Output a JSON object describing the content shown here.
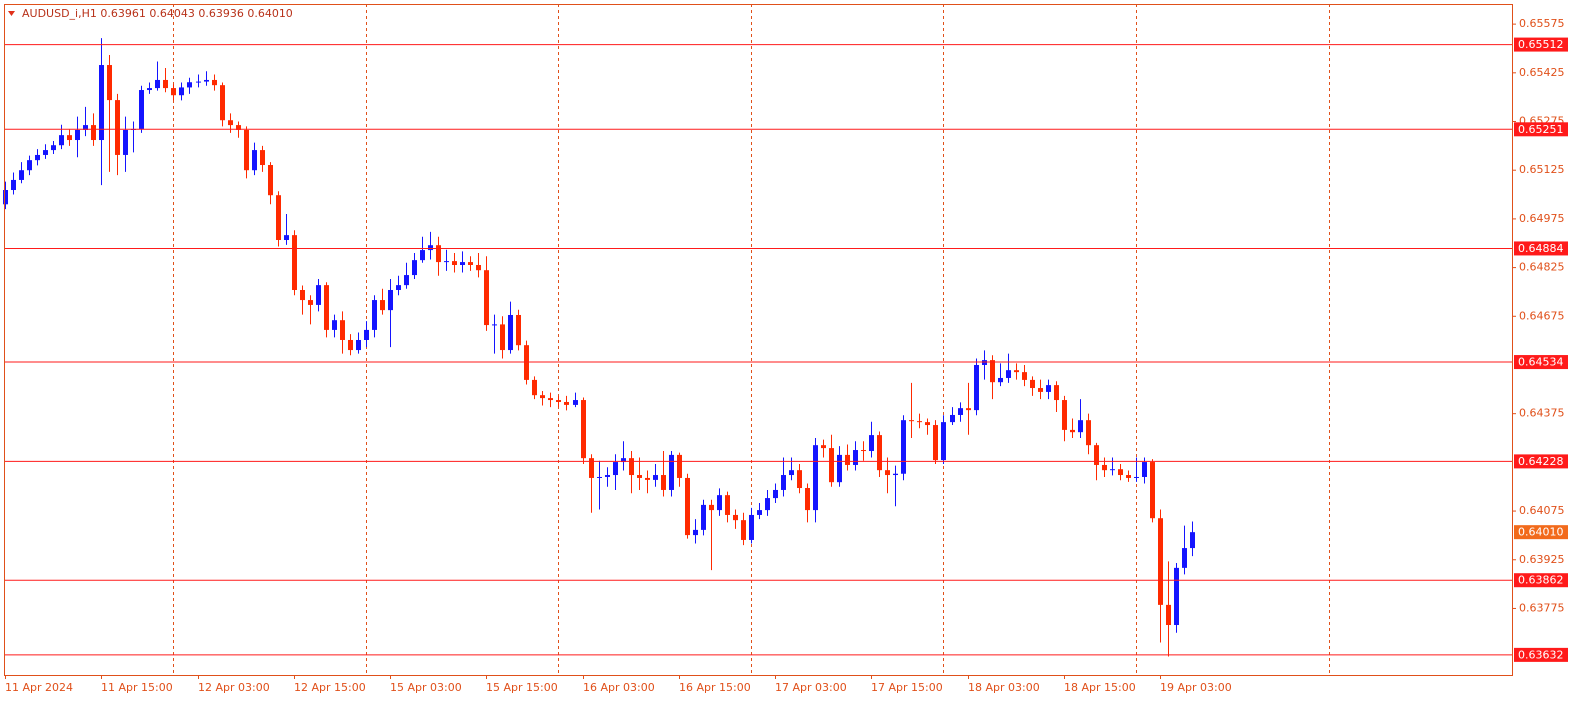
{
  "chart_data": {
    "type": "candlestick",
    "header": "AUDUSD_i,H1  0.63961 0.64043 0.63936 0.64010",
    "last_price_label": "0.64010",
    "up_color": "#1414ff",
    "down_color": "#ff2a00",
    "level_color": "#ff1a1a",
    "axis_color": "#e0501a",
    "grid": true,
    "ylim": [
      0.6357,
      0.65637
    ],
    "yticks": [
      0.65575,
      0.65425,
      0.65275,
      0.65125,
      0.64975,
      0.64825,
      0.64675,
      0.64375,
      0.64075,
      0.63925,
      0.63775
    ],
    "levels": [
      0.65512,
      0.65251,
      0.64884,
      0.64534,
      0.64228,
      0.63862,
      0.63632
    ],
    "categories": [
      "11 Apr 2024",
      null,
      null,
      null,
      null,
      null,
      null,
      null,
      null,
      null,
      null,
      null,
      "11 Apr 15:00",
      null,
      null,
      null,
      null,
      null,
      null,
      null,
      null,
      null,
      null,
      null,
      "12 Apr 03:00",
      null,
      null,
      null,
      null,
      null,
      null,
      null,
      null,
      null,
      null,
      null,
      "12 Apr 15:00",
      null,
      null,
      null,
      null,
      null,
      null,
      null,
      null,
      null,
      null,
      null,
      "15 Apr 03:00",
      null,
      null,
      null,
      null,
      null,
      null,
      null,
      null,
      null,
      null,
      null,
      "15 Apr 15:00",
      null,
      null,
      null,
      null,
      null,
      null,
      null,
      null,
      null,
      null,
      null,
      "16 Apr 03:00",
      null,
      null,
      null,
      null,
      null,
      null,
      null,
      null,
      null,
      null,
      null,
      "16 Apr 15:00",
      null,
      null,
      null,
      null,
      null,
      null,
      null,
      null,
      null,
      null,
      null,
      "17 Apr 03:00",
      null,
      null,
      null,
      null,
      null,
      null,
      null,
      null,
      null,
      null,
      null,
      "17 Apr 15:00",
      null,
      null,
      null,
      null,
      null,
      null,
      null,
      null,
      null,
      null,
      null,
      "18 Apr 03:00",
      null,
      null,
      null,
      null,
      null,
      null,
      null,
      null,
      null,
      null,
      null,
      "18 Apr 15:00",
      null,
      null,
      null,
      null,
      null,
      null,
      null,
      null,
      null,
      null,
      null,
      "19 Apr 03:00",
      null,
      null,
      null,
      null
    ],
    "open": [
      0.6502,
      0.65064,
      0.65095,
      0.65125,
      0.65156,
      0.65172,
      0.65187,
      0.65202,
      0.65233,
      0.65218,
      0.65249,
      0.65264,
      0.65218,
      0.65449,
      0.65341,
      0.65172,
      0.65249,
      0.65252,
      0.65372,
      0.65378,
      0.65403,
      0.65378,
      0.65356,
      0.6538,
      0.65396,
      0.65398,
      0.65403,
      0.65387,
      0.65279,
      0.65264,
      0.65249,
      0.65125,
      0.65187,
      0.65141,
      0.65048,
      0.6491,
      0.64925,
      0.64756,
      0.64725,
      0.6471,
      0.64771,
      0.64633,
      0.64663,
      0.64602,
      0.64571,
      0.64602,
      0.64633,
      0.64725,
      0.64694,
      0.64756,
      0.64771,
      0.64802,
      0.64848,
      0.64879,
      0.64894,
      0.64842,
      0.64845,
      0.64833,
      0.64842,
      0.64833,
      0.64817,
      0.64648,
      0.6465,
      0.64571,
      0.64679,
      0.64586,
      0.64479,
      0.64432,
      0.64423,
      0.64417,
      0.64411,
      0.64402,
      0.64417,
      0.64238,
      0.64177,
      0.6418,
      0.64186,
      0.64226,
      0.64238,
      0.64186,
      0.64177,
      0.64171,
      0.64186,
      0.6414,
      0.64248,
      0.64177,
      0.64001,
      0.64017,
      0.64094,
      0.64078,
      0.64124,
      0.64063,
      0.64047,
      0.63986,
      0.64063,
      0.64078,
      0.64115,
      0.6414,
      0.64186,
      0.64201,
      0.64146,
      0.64078,
      0.64278,
      0.64269,
      0.64164,
      0.64248,
      0.64217,
      0.64263,
      0.6426,
      0.64309,
      0.64201,
      0.64186,
      0.6419,
      0.64355,
      0.64352,
      0.64349,
      0.6434,
      0.64232,
      0.64349,
      0.64371,
      0.64392,
      0.64386,
      0.64525,
      0.6454,
      0.64472,
      0.64485,
      0.64509,
      0.64503,
      0.64479,
      0.64454,
      0.64442,
      0.64463,
      0.64417,
      0.64325,
      0.64318,
      0.64355,
      0.64278,
      0.64217,
      0.64201,
      0.64204,
      0.64186,
      0.64177,
      0.6418,
      0.64226,
      0.64053,
      0.63786,
      0.63724,
      0.639,
      0.63961
    ],
    "high": [
      0.6509,
      0.65118,
      0.6515,
      0.6517,
      0.6519,
      0.65205,
      0.65215,
      0.65265,
      0.6525,
      0.6529,
      0.6532,
      0.653,
      0.65532,
      0.6548,
      0.6536,
      0.6529,
      0.65275,
      0.65385,
      0.65395,
      0.6546,
      0.6544,
      0.6539,
      0.65395,
      0.6541,
      0.6542,
      0.6543,
      0.6542,
      0.65395,
      0.653,
      0.65275,
      0.6526,
      0.6521,
      0.652,
      0.6515,
      0.6506,
      0.6499,
      0.6494,
      0.6477,
      0.6474,
      0.6479,
      0.6478,
      0.6468,
      0.6469,
      0.6462,
      0.64625,
      0.6466,
      0.6474,
      0.6476,
      0.6479,
      0.648,
      0.6484,
      0.6487,
      0.6492,
      0.64935,
      0.6492,
      0.6488,
      0.6487,
      0.64875,
      0.6486,
      0.6487,
      0.6486,
      0.6468,
      0.64675,
      0.6472,
      0.64695,
      0.646,
      0.6449,
      0.64445,
      0.6444,
      0.6443,
      0.6443,
      0.6444,
      0.64425,
      0.6425,
      0.6423,
      0.6421,
      0.6425,
      0.6429,
      0.6426,
      0.6424,
      0.642,
      0.6422,
      0.6426,
      0.6426,
      0.64255,
      0.6419,
      0.6405,
      0.6411,
      0.6411,
      0.64145,
      0.64135,
      0.6408,
      0.6407,
      0.64085,
      0.641,
      0.6414,
      0.6416,
      0.6424,
      0.6424,
      0.6422,
      0.6416,
      0.643,
      0.64295,
      0.6431,
      0.64275,
      0.6428,
      0.6429,
      0.6429,
      0.6435,
      0.6432,
      0.6424,
      0.64215,
      0.6437,
      0.6447,
      0.64375,
      0.6436,
      0.64355,
      0.6437,
      0.64395,
      0.6441,
      0.6447,
      0.64545,
      0.6457,
      0.64555,
      0.6453,
      0.6456,
      0.6453,
      0.64525,
      0.6449,
      0.6448,
      0.6448,
      0.64475,
      0.6443,
      0.6436,
      0.6442,
      0.64375,
      0.64285,
      0.6424,
      0.6424,
      0.6422,
      0.642,
      0.6424,
      0.6424,
      0.64235,
      0.6408,
      0.6392,
      0.63915,
      0.6403,
      0.64043
    ],
    "low": [
      0.65005,
      0.6505,
      0.65085,
      0.6511,
      0.6514,
      0.6516,
      0.65175,
      0.6519,
      0.652,
      0.65165,
      0.6523,
      0.652,
      0.65079,
      0.6512,
      0.6511,
      0.6512,
      0.6518,
      0.6524,
      0.6536,
      0.6537,
      0.65365,
      0.6534,
      0.6534,
      0.6536,
      0.6538,
      0.65385,
      0.6537,
      0.6526,
      0.6524,
      0.65225,
      0.651,
      0.6511,
      0.6512,
      0.6502,
      0.6489,
      0.64895,
      0.6474,
      0.6468,
      0.6465,
      0.6469,
      0.6461,
      0.6461,
      0.6456,
      0.64555,
      0.6456,
      0.6458,
      0.6461,
      0.6468,
      0.6458,
      0.6474,
      0.6476,
      0.6479,
      0.6484,
      0.6485,
      0.648,
      0.64815,
      0.6481,
      0.6481,
      0.64815,
      0.64795,
      0.6463,
      0.6456,
      0.64545,
      0.6456,
      0.6457,
      0.64465,
      0.6442,
      0.644,
      0.64395,
      0.64395,
      0.64385,
      0.64395,
      0.6422,
      0.6407,
      0.6408,
      0.6415,
      0.6414,
      0.642,
      0.6413,
      0.6414,
      0.6413,
      0.6415,
      0.6412,
      0.6412,
      0.6415,
      0.6399,
      0.63975,
      0.64,
      0.63893,
      0.6406,
      0.6404,
      0.6402,
      0.6397,
      0.63975,
      0.6405,
      0.6406,
      0.641,
      0.6412,
      0.6417,
      0.6413,
      0.6404,
      0.6404,
      0.6424,
      0.6415,
      0.6415,
      0.642,
      0.642,
      0.6423,
      0.6424,
      0.6418,
      0.6413,
      0.6409,
      0.6417,
      0.643,
      0.6433,
      0.6431,
      0.6422,
      0.6422,
      0.6434,
      0.6435,
      0.6431,
      0.6437,
      0.6448,
      0.6442,
      0.6446,
      0.6447,
      0.6448,
      0.6446,
      0.6443,
      0.6442,
      0.6442,
      0.6438,
      0.6429,
      0.643,
      0.643,
      0.6425,
      0.6417,
      0.6418,
      0.64185,
      0.6417,
      0.64165,
      0.64165,
      0.6416,
      0.6404,
      0.6367,
      0.63627,
      0.637,
      0.6388,
      0.63936
    ],
    "close": [
      0.65064,
      0.65095,
      0.65125,
      0.65156,
      0.65172,
      0.65187,
      0.65202,
      0.65233,
      0.65218,
      0.65249,
      0.65264,
      0.65218,
      0.65449,
      0.65341,
      0.65172,
      0.65249,
      0.65252,
      0.65372,
      0.65378,
      0.65403,
      0.65378,
      0.65356,
      0.6538,
      0.65396,
      0.65398,
      0.65403,
      0.65387,
      0.65279,
      0.65264,
      0.65249,
      0.65125,
      0.65187,
      0.65141,
      0.65048,
      0.6491,
      0.64925,
      0.64756,
      0.64725,
      0.6471,
      0.64771,
      0.64633,
      0.64663,
      0.64602,
      0.64571,
      0.64602,
      0.64633,
      0.64725,
      0.64694,
      0.64756,
      0.64771,
      0.64802,
      0.64848,
      0.64879,
      0.64894,
      0.64842,
      0.64845,
      0.64833,
      0.64842,
      0.64833,
      0.64817,
      0.64648,
      0.6465,
      0.64571,
      0.64679,
      0.64586,
      0.64479,
      0.64432,
      0.64423,
      0.64417,
      0.64411,
      0.64402,
      0.64417,
      0.64238,
      0.64177,
      0.6418,
      0.64186,
      0.64226,
      0.64238,
      0.64186,
      0.64177,
      0.64171,
      0.64186,
      0.6414,
      0.64248,
      0.64177,
      0.64001,
      0.64017,
      0.64094,
      0.64078,
      0.64124,
      0.64063,
      0.64047,
      0.63986,
      0.64063,
      0.64078,
      0.64115,
      0.6414,
      0.64186,
      0.64201,
      0.64146,
      0.64078,
      0.64278,
      0.64269,
      0.64164,
      0.64248,
      0.64217,
      0.64263,
      0.6426,
      0.64309,
      0.64201,
      0.64186,
      0.6419,
      0.64355,
      0.64352,
      0.64349,
      0.6434,
      0.64232,
      0.64349,
      0.64371,
      0.64392,
      0.64386,
      0.64525,
      0.6454,
      0.64472,
      0.64485,
      0.64509,
      0.64503,
      0.64479,
      0.64454,
      0.64442,
      0.64463,
      0.64417,
      0.64325,
      0.64318,
      0.64355,
      0.64278,
      0.64217,
      0.64201,
      0.64204,
      0.64186,
      0.64177,
      0.6418,
      0.64226,
      0.64053,
      0.63786,
      0.63724,
      0.639,
      0.63961,
      0.6401
    ]
  }
}
